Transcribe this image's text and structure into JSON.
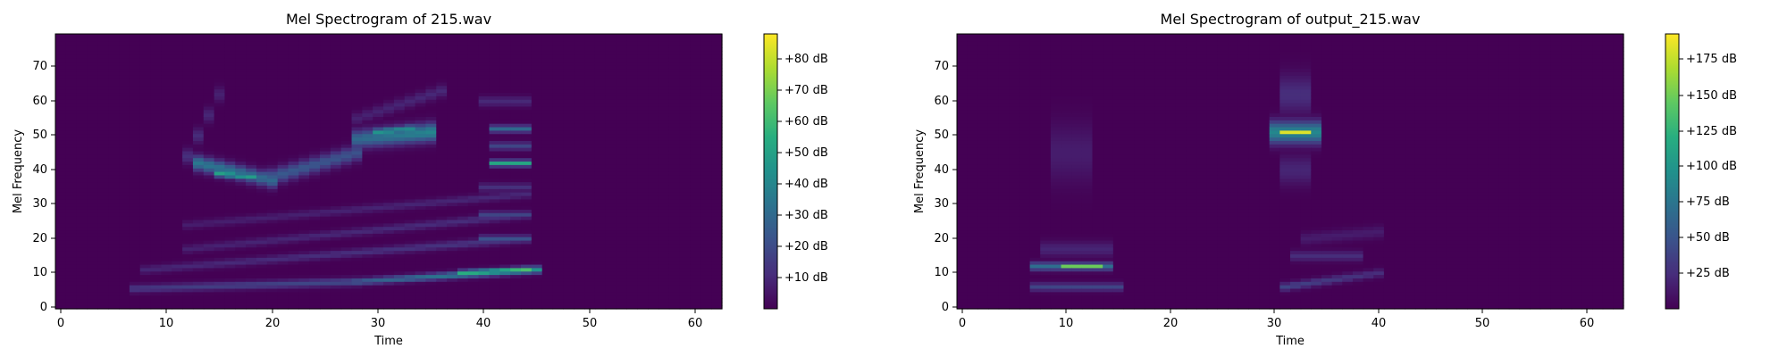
{
  "chart_data": [
    {
      "type": "heatmap",
      "title": "Mel Spectrogram of 215.wav",
      "xlabel": "Time",
      "ylabel": "Mel Frequency",
      "xlim": [
        -0.5,
        62.5
      ],
      "ylim": [
        -0.5,
        79.5
      ],
      "x_ticks": [
        0,
        10,
        20,
        30,
        40,
        50,
        60
      ],
      "y_ticks": [
        0,
        10,
        20,
        30,
        40,
        50,
        60,
        70
      ],
      "x_tick_labels": [
        "0",
        "10",
        "20",
        "30",
        "40",
        "50",
        "60"
      ],
      "y_tick_labels": [
        "0",
        "10",
        "20",
        "30",
        "40",
        "50",
        "60",
        "70"
      ],
      "colormap": "viridis",
      "colorbar": {
        "vmin": 0,
        "vmax": 88,
        "ticks": [
          10,
          20,
          30,
          40,
          50,
          60,
          70,
          80
        ],
        "labels": [
          "+10 dB",
          "+20 dB",
          "+30 dB",
          "+40 dB",
          "+50 dB",
          "+60 dB",
          "+70 dB",
          "+80 dB"
        ]
      },
      "features": [
        {
          "t0": 7,
          "t1": 28,
          "f0": 5.5,
          "f1": 7.5,
          "v0": 14,
          "v1": 20,
          "s": 0.8
        },
        {
          "t0": 28,
          "t1": 45,
          "f0": 7.5,
          "f1": 11,
          "v0": 25,
          "v1": 45,
          "s": 0.7
        },
        {
          "t0": 38,
          "t1": 44,
          "f0": 10,
          "f1": 11,
          "v0": 55,
          "v1": 62,
          "s": 0.6
        },
        {
          "t0": 8,
          "t1": 44,
          "f0": 11,
          "f1": 20,
          "v0": 9,
          "v1": 14,
          "s": 0.8
        },
        {
          "t0": 12,
          "t1": 44,
          "f0": 17,
          "f1": 27,
          "v0": 8,
          "v1": 12,
          "s": 0.8
        },
        {
          "t0": 12,
          "t1": 44,
          "f0": 24,
          "f1": 33,
          "v0": 7,
          "v1": 10,
          "s": 0.8
        },
        {
          "t0": 13,
          "t1": 20,
          "f0": 42,
          "f1": 37,
          "v0": 35,
          "v1": 30,
          "s": 1.5
        },
        {
          "t0": 15,
          "t1": 18,
          "f0": 39,
          "f1": 38,
          "v0": 50,
          "v1": 48,
          "s": 0.7
        },
        {
          "t0": 20,
          "t1": 28,
          "f0": 38,
          "f1": 45,
          "v0": 25,
          "v1": 22,
          "s": 1.6
        },
        {
          "t0": 28,
          "t1": 35,
          "f0": 49,
          "f1": 51,
          "v0": 30,
          "v1": 40,
          "s": 1.8
        },
        {
          "t0": 30,
          "t1": 33,
          "f0": 51,
          "f1": 52,
          "v0": 45,
          "v1": 42,
          "s": 0.8
        },
        {
          "t0": 12,
          "t1": 15,
          "f0": 44,
          "f1": 62,
          "v0": 12,
          "v1": 8,
          "s": 1.5
        },
        {
          "t0": 28,
          "t1": 36,
          "f0": 55,
          "f1": 63,
          "v0": 8,
          "v1": 10,
          "s": 1.2
        },
        {
          "t0": 41,
          "t1": 44,
          "f0": 42,
          "f1": 42,
          "v0": 52,
          "v1": 52,
          "s": 0.6
        },
        {
          "t0": 41,
          "t1": 44,
          "f0": 52,
          "f1": 52,
          "v0": 30,
          "v1": 30,
          "s": 0.7
        },
        {
          "t0": 41,
          "t1": 44,
          "f0": 47,
          "f1": 47,
          "v0": 18,
          "v1": 18,
          "s": 0.8
        },
        {
          "t0": 40,
          "t1": 44,
          "f0": 27,
          "f1": 27,
          "v0": 18,
          "v1": 18,
          "s": 0.7
        },
        {
          "t0": 40,
          "t1": 44,
          "f0": 20,
          "f1": 20,
          "v0": 22,
          "v1": 22,
          "s": 0.7
        },
        {
          "t0": 40,
          "t1": 44,
          "f0": 35,
          "f1": 35,
          "v0": 12,
          "v1": 12,
          "s": 0.8
        },
        {
          "t0": 40,
          "t1": 44,
          "f0": 60,
          "f1": 60,
          "v0": 10,
          "v1": 10,
          "s": 1
        }
      ]
    },
    {
      "type": "heatmap",
      "title": "Mel Spectrogram of output_215.wav",
      "xlabel": "Time",
      "ylabel": "Mel Frequency",
      "xlim": [
        -0.5,
        63.5
      ],
      "ylim": [
        -0.5,
        79.5
      ],
      "x_ticks": [
        0,
        10,
        20,
        30,
        40,
        50,
        60
      ],
      "y_ticks": [
        0,
        10,
        20,
        30,
        40,
        50,
        60,
        70
      ],
      "x_tick_labels": [
        "0",
        "10",
        "20",
        "30",
        "40",
        "50",
        "60"
      ],
      "y_tick_labels": [
        "0",
        "10",
        "20",
        "30",
        "40",
        "50",
        "60",
        "70"
      ],
      "colormap": "viridis",
      "colorbar": {
        "vmin": 0,
        "vmax": 195,
        "ticks": [
          25,
          50,
          75,
          100,
          125,
          150,
          175
        ],
        "labels": [
          "+25 dB",
          "+50 dB",
          "+75 dB",
          "+100 dB",
          "+125 dB",
          "+150 dB",
          "+175 dB"
        ]
      },
      "features": [
        {
          "t0": 7,
          "t1": 14,
          "f0": 12,
          "f1": 12,
          "v0": 70,
          "v1": 70,
          "s": 0.8
        },
        {
          "t0": 10,
          "t1": 13,
          "f0": 12,
          "f1": 12,
          "v0": 150,
          "v1": 150,
          "s": 0.5
        },
        {
          "t0": 7,
          "t1": 15,
          "f0": 6,
          "f1": 6,
          "v0": 40,
          "v1": 40,
          "s": 0.8
        },
        {
          "t0": 8,
          "t1": 14,
          "f0": 17,
          "f1": 17,
          "v0": 20,
          "v1": 20,
          "s": 1.5
        },
        {
          "t0": 9,
          "t1": 12,
          "f0": 45,
          "f1": 45,
          "v0": 15,
          "v1": 15,
          "s": 6
        },
        {
          "t0": 30,
          "t1": 34,
          "f0": 51,
          "f1": 51,
          "v0": 90,
          "v1": 90,
          "s": 2.2
        },
        {
          "t0": 31.5,
          "t1": 33,
          "f0": 51,
          "f1": 51,
          "v0": 185,
          "v1": 185,
          "s": 0.6
        },
        {
          "t0": 31,
          "t1": 33,
          "f0": 62,
          "f1": 62,
          "v0": 25,
          "v1": 25,
          "s": 4
        },
        {
          "t0": 31,
          "t1": 33,
          "f0": 40,
          "f1": 40,
          "v0": 20,
          "v1": 20,
          "s": 3
        },
        {
          "t0": 31,
          "t1": 40,
          "f0": 6,
          "f1": 10,
          "v0": 40,
          "v1": 25,
          "s": 0.8
        },
        {
          "t0": 32,
          "t1": 38,
          "f0": 15,
          "f1": 15,
          "v0": 25,
          "v1": 25,
          "s": 1
        },
        {
          "t0": 33,
          "t1": 40,
          "f0": 20,
          "f1": 22,
          "v0": 15,
          "v1": 15,
          "s": 1.2
        }
      ]
    }
  ]
}
